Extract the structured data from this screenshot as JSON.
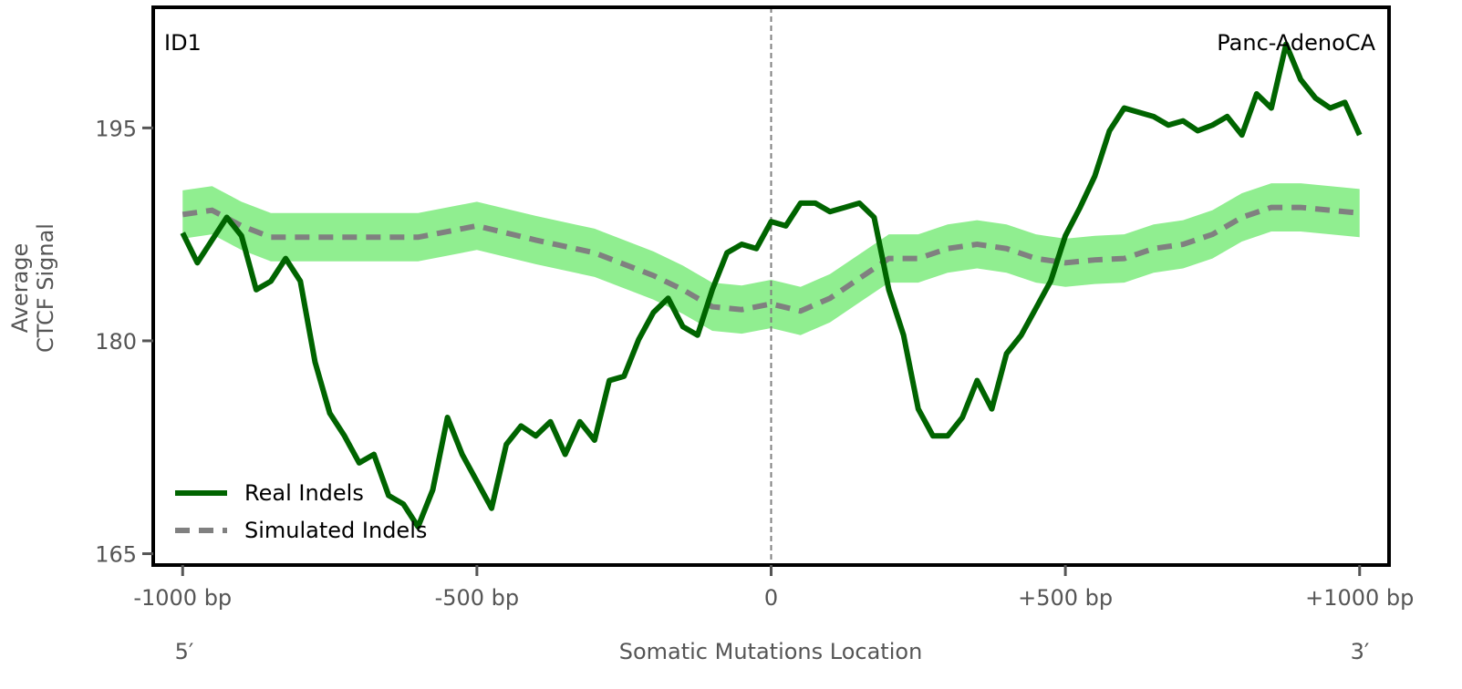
{
  "chart_data": {
    "type": "line",
    "xlabel": "Somatic Mutations Location",
    "ylabel_lines": [
      "Average",
      "CTCF Signal"
    ],
    "annotation_left": "ID1",
    "annotation_right": "Panc-AdenoCA",
    "end_labels": {
      "left": "5′",
      "right": "3′"
    },
    "xlim": [
      -1050,
      1050
    ],
    "ylim": [
      164.2,
      203.5
    ],
    "x_ticks": [
      -1000,
      -500,
      0,
      500,
      1000
    ],
    "x_tick_labels": [
      "-1000 bp",
      "-500 bp",
      "0",
      "+500 bp",
      "+1000 bp"
    ],
    "y_ticks": [
      165,
      180,
      195
    ],
    "y_tick_labels": [
      "165",
      "180",
      "195"
    ],
    "vertical_line_x": 0,
    "legend_position": "lower-left",
    "colors": {
      "real": "#006400",
      "simulated": "#808080",
      "band": "#90EE90",
      "vline": "#808080"
    },
    "series": [
      {
        "name": "Real Indels",
        "style": "solid",
        "x": [
          -1000,
          -975,
          -950,
          -925,
          -900,
          -875,
          -850,
          -825,
          -800,
          -775,
          -750,
          -725,
          -700,
          -675,
          -650,
          -625,
          -600,
          -575,
          -550,
          -525,
          -500,
          -475,
          -450,
          -425,
          -400,
          -375,
          -350,
          -325,
          -300,
          -275,
          -250,
          -225,
          -200,
          -175,
          -150,
          -125,
          -100,
          -75,
          -50,
          -25,
          0,
          25,
          50,
          75,
          100,
          125,
          150,
          175,
          200,
          225,
          250,
          275,
          300,
          325,
          350,
          375,
          400,
          425,
          450,
          475,
          500,
          525,
          550,
          575,
          600,
          625,
          650,
          675,
          700,
          725,
          750,
          775,
          800,
          825,
          850,
          875,
          900,
          925,
          950,
          975,
          1000
        ],
        "y": [
          187.6,
          185.5,
          187.1,
          188.7,
          187.4,
          183.6,
          184.2,
          185.8,
          184.2,
          178.5,
          174.9,
          173.3,
          171.4,
          172.0,
          169.1,
          168.5,
          166.9,
          169.5,
          174.6,
          172.0,
          170.1,
          168.2,
          172.7,
          174.0,
          173.3,
          174.3,
          172.0,
          174.3,
          173.0,
          177.2,
          177.5,
          180.1,
          182.0,
          183.0,
          181.0,
          180.4,
          183.6,
          186.2,
          186.8,
          186.5,
          188.4,
          188.1,
          189.7,
          189.7,
          189.1,
          189.4,
          189.7,
          188.7,
          183.6,
          180.4,
          175.2,
          173.3,
          173.3,
          174.6,
          177.2,
          175.2,
          179.1,
          180.4,
          182.3,
          184.2,
          187.4,
          189.4,
          191.6,
          194.8,
          196.4,
          196.1,
          195.8,
          195.2,
          195.5,
          194.8,
          195.2,
          195.8,
          194.5,
          197.4,
          196.4,
          200.9,
          198.4,
          197.1,
          196.4,
          196.8,
          194.5
        ]
      },
      {
        "name": "Simulated Indels",
        "style": "dashed",
        "x": [
          -1000,
          -950,
          -900,
          -850,
          -800,
          -700,
          -600,
          -500,
          -400,
          -300,
          -200,
          -150,
          -100,
          -50,
          0,
          50,
          100,
          150,
          200,
          250,
          300,
          350,
          400,
          450,
          500,
          550,
          600,
          650,
          700,
          750,
          800,
          850,
          900,
          950,
          1000
        ],
        "y": [
          188.9,
          189.2,
          188.1,
          187.3,
          187.3,
          187.3,
          187.3,
          188.1,
          187.1,
          186.2,
          184.6,
          183.6,
          182.4,
          182.2,
          182.6,
          182.1,
          183.0,
          184.4,
          185.8,
          185.8,
          186.5,
          186.8,
          186.5,
          185.8,
          185.5,
          185.7,
          185.8,
          186.5,
          186.8,
          187.5,
          188.7,
          189.4,
          189.4,
          189.2,
          189.0
        ],
        "band_halfwidth": 1.7
      }
    ]
  }
}
